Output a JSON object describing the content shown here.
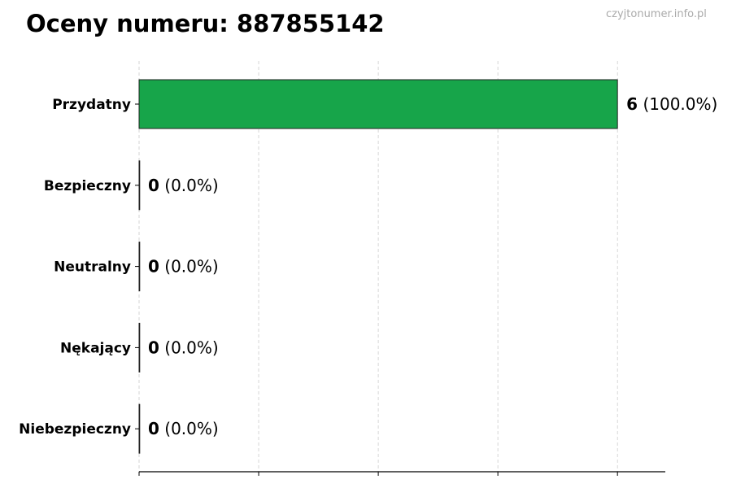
{
  "chart_data": {
    "type": "bar",
    "orientation": "horizontal",
    "title": "Oceny numeru: 887855142",
    "watermark": "czyjtonumer.info.pl",
    "categories": [
      "Przydatny",
      "Bezpieczny",
      "Neutralny",
      "Nękający",
      "Niebezpieczny"
    ],
    "values": [
      6,
      0,
      0,
      0,
      0
    ],
    "value_labels": [
      "6",
      "0",
      "0",
      "0",
      "0"
    ],
    "percent_labels": [
      "(100.0%)",
      "(0.0%)",
      "(0.0%)",
      "(0.0%)",
      "(0.0%)"
    ],
    "colors": [
      "#17a54a",
      "#17a54a",
      "#17a54a",
      "#17a54a",
      "#17a54a"
    ],
    "xlim": [
      0,
      6.6
    ],
    "xticks": [
      0,
      1.5,
      3,
      4.5,
      6
    ],
    "xtick_labels_shown": false,
    "grid": "vertical dashed",
    "xlabel": "",
    "ylabel": ""
  }
}
